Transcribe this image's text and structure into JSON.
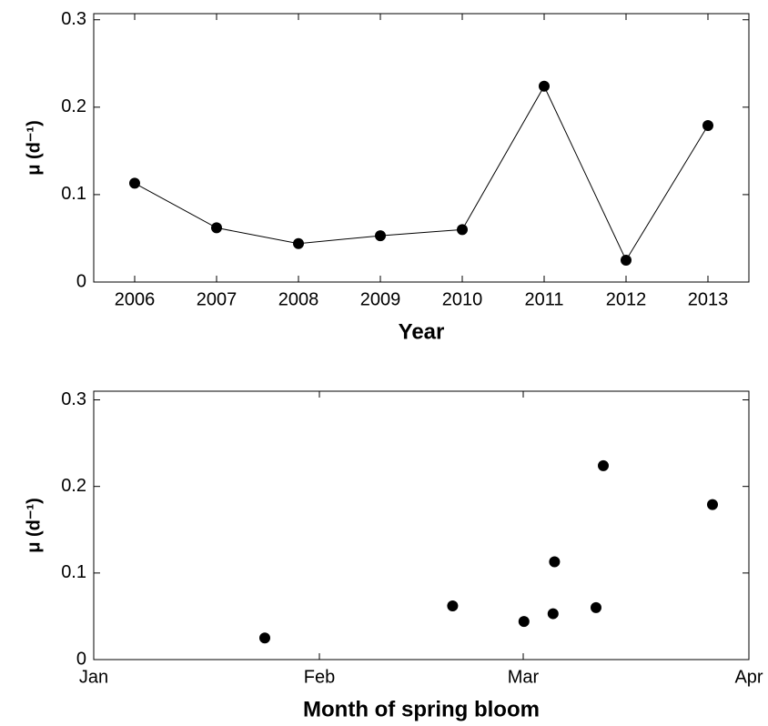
{
  "chart_data": [
    {
      "type": "line",
      "xlabel": "Year",
      "ylabel": "μ (d⁻¹)",
      "x": [
        2006,
        2007,
        2008,
        2009,
        2010,
        2011,
        2012,
        2013
      ],
      "values": [
        0.113,
        0.062,
        0.044,
        0.053,
        0.06,
        0.224,
        0.025,
        0.179
      ],
      "color": "#000000",
      "xlim": [
        2005.5,
        2013.5
      ],
      "xticks": [
        2006,
        2007,
        2008,
        2009,
        2010,
        2011,
        2012,
        2013
      ],
      "ylim": [
        0,
        0.307
      ],
      "yticks": [
        0,
        0.1,
        0.2,
        0.3
      ]
    },
    {
      "type": "scatter",
      "xlabel": "Month of spring bloom",
      "ylabel": "μ (d⁻¹)",
      "x": [
        23.5,
        49.3,
        59.1,
        63.1,
        63.3,
        69,
        70,
        85
      ],
      "values": [
        0.025,
        0.062,
        0.044,
        0.053,
        0.113,
        0.06,
        0.224,
        0.179
      ],
      "color": "#000000",
      "xlim": [
        0,
        90
      ],
      "xticks": [
        {
          "value": 0,
          "label": "Jan"
        },
        {
          "value": 31,
          "label": "Feb"
        },
        {
          "value": 59,
          "label": "Mar"
        },
        {
          "value": 90,
          "label": "Apr"
        }
      ],
      "ylim": [
        0,
        0.31
      ],
      "yticks": [
        0,
        0.1,
        0.2,
        0.3
      ]
    }
  ]
}
